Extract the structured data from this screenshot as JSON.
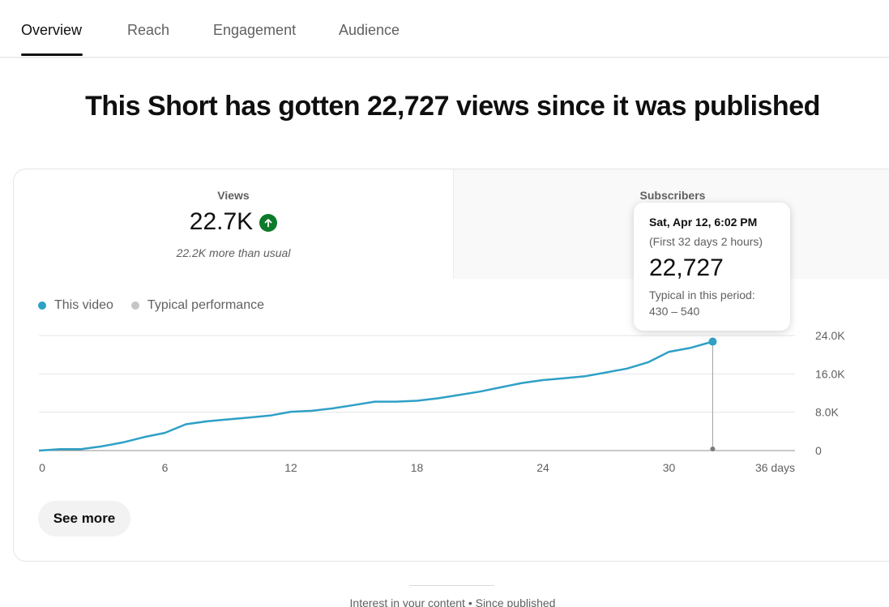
{
  "tabs": [
    {
      "label": "Overview",
      "active": true
    },
    {
      "label": "Reach",
      "active": false
    },
    {
      "label": "Engagement",
      "active": false
    },
    {
      "label": "Audience",
      "active": false
    }
  ],
  "headline": "This Short has gotten 22,727 views since it was published",
  "metrics": {
    "views": {
      "label": "Views",
      "value": "22.7K",
      "trend_icon": "arrow-up-icon",
      "sub": "22.2K more than usual"
    },
    "subscribers": {
      "label": "Subscribers"
    }
  },
  "legend": [
    {
      "label": "This video",
      "color": "#2fa0c6"
    },
    {
      "label": "Typical performance",
      "color": "#c6c6c6"
    }
  ],
  "tooltip": {
    "date": "Sat, Apr 12, 6:02 PM",
    "period": "(First 32 days 2 hours)",
    "value": "22,727",
    "typical_label": "Typical in this period:",
    "typical_range": "430 – 540"
  },
  "chart_data": {
    "type": "line",
    "x_tick_labels": [
      "0",
      "6",
      "12",
      "18",
      "24",
      "30",
      "36 days"
    ],
    "y_tick_labels": [
      "0",
      "8.0K",
      "16.0K",
      "24.0K"
    ],
    "xlim": [
      0,
      36
    ],
    "ylim": [
      0,
      24000
    ],
    "grid": true,
    "series": [
      {
        "name": "This video",
        "color": "#2fa0c6",
        "x": [
          0,
          1,
          2,
          3,
          4,
          5,
          6,
          7,
          8,
          9,
          10,
          11,
          12,
          13,
          14,
          15,
          16,
          17,
          18,
          19,
          20,
          21,
          22,
          23,
          24,
          25,
          26,
          27,
          28,
          29,
          30,
          31,
          32.08
        ],
        "values": [
          0,
          300,
          300,
          900,
          1700,
          2800,
          3700,
          5500,
          6100,
          6500,
          6900,
          7300,
          8100,
          8300,
          8800,
          9500,
          10200,
          10200,
          10400,
          10900,
          11600,
          12300,
          13200,
          14100,
          14700,
          15100,
          15500,
          16300,
          17100,
          18400,
          20600,
          21400,
          22727
        ]
      }
    ],
    "highlight": {
      "x": 32.08,
      "value": 22727
    }
  },
  "see_more_label": "See more",
  "footer_text": "Interest in your content • Since published"
}
